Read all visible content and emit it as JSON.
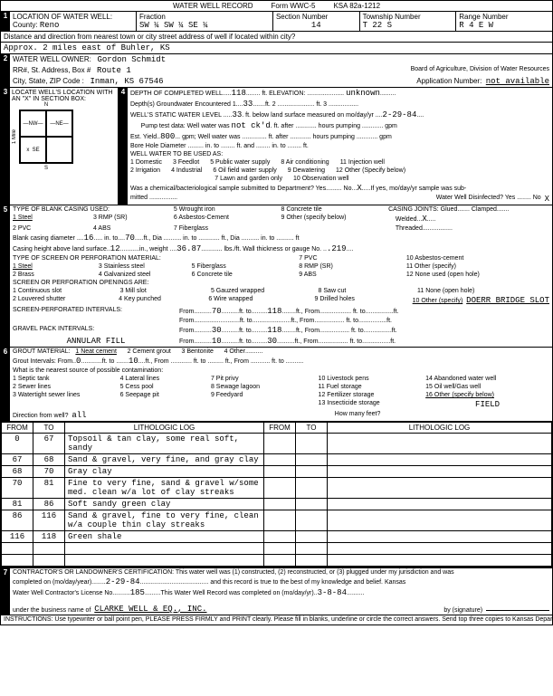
{
  "form": {
    "title_left": "WATER WELL RECORD",
    "title_mid": "Form WWC-5",
    "title_right": "KSA 82a-1212"
  },
  "sec1": {
    "label": "LOCATION OF WATER WELL:",
    "county_label": "County:",
    "county": "Reno",
    "fraction_label": "Fraction",
    "fraction": "SW  ¼  SW  ¼  SE  ¼",
    "section_label": "Section Number",
    "section": "14",
    "township_label": "Township Number",
    "township": "T    22    S",
    "range_label": "Range Number",
    "range": "R  4      E  W",
    "distance_label": "Distance and direction from nearest town or city street address of well if located within city?",
    "distance": "Approx. 2 miles east of Buhler, KS"
  },
  "sec2": {
    "owner_label": "WATER WELL OWNER:",
    "owner": "Gordon Schmidt",
    "rr_label": "RR#, St. Address, Box #",
    "rr": "Route 1",
    "board": "Board of Agriculture, Division of Water Resources",
    "city_label": "City, State, ZIP Code  :",
    "city": "Inman, KS   67546",
    "app_label": "Application Number:",
    "app": "not available"
  },
  "sec3": {
    "label": "LOCATE WELL'S LOCATION WITH AN \"X\" IN SECTION BOX:",
    "n": "N",
    "nw": "NW",
    "ne": "NE",
    "w": "W",
    "e": "E",
    "sw": "SW",
    "se": "SE",
    "s": "S",
    "mile": "1 Mile"
  },
  "sec4": {
    "depth_label": "DEPTH OF COMPLETED WELL",
    "depth": "118",
    "elev_label": "ft. ELEVATION:",
    "elev": "unknown",
    "gw_label": "Depth(s) Groundwater Encountered   1",
    "gw1": "33",
    "gw2": "ft. 2",
    "gw3": "ft. 3",
    "static_label": "WELL'S STATIC WATER LEVEL",
    "static": "33",
    "static_after": "ft. below land surface measured on mo/day/yr",
    "static_date": "2-29-84",
    "pump_label": "Pump test data:  Well water was",
    "pump_val": "not ck'd",
    "pump_after": "ft. after ............ hours pumping ............ gpm",
    "yield_label": "Est. Yield",
    "yield": "800",
    "yield_after": "gpm;  Well water was .............. ft. after ............ hours pumping ............ gpm",
    "bore_label": "Bore Hole Diameter",
    "bore_after": "in. to ........ ft. and ........ in. to ........ ft.",
    "use_label": "WELL WATER TO BE USED AS:",
    "use_opts": [
      "1 Domestic",
      "2 Irrigation",
      "3  Feedlot",
      "4  Industrial",
      "5 Public water supply",
      "6 Oil field water supply",
      "7 Lawn and garden only",
      "8 Air conditioning",
      "9 Dewatering",
      "10 Observation well",
      "11 Injection well",
      "12 Other (Specify below)"
    ],
    "chem_label": "Was a chemical/bacteriological sample submitted to Department? Yes......... No",
    "chem_val": "X",
    "chem_after": "If yes, mo/day/yr sample was sub-",
    "mitted": "mitted ................",
    "disinfect": "Water Well Disinfected?  Yes ........  No",
    "disinfect_val": "X"
  },
  "sec5": {
    "label": "TYPE OF BLANK CASING USED:",
    "casing_opts": [
      "1 Steel",
      "2 PVC",
      "3 RMP (SR)",
      "4 ABS",
      "5 Wrought iron",
      "6 Asbestos-Cement",
      "7 Fiberglass",
      "8 Concrete tile",
      "9 Other (specify below)"
    ],
    "joints_label": "CASING JOINTS: Glued....... Clamped.......",
    "welded_label": "Welded",
    "welded": "X",
    "threaded": "Threaded.................",
    "dia_label": "Blank casing diameter",
    "dia": "16",
    "dia_to_label": "in. to",
    "dia_to": "70",
    "dia_after": "ft., Dia .......... in. to ............ ft., Dia .......... in. to .......... ft",
    "height_label": "Casing height above land surface",
    "height": "12",
    "weight_label": "in., weight",
    "weight": "36.87",
    "weight_after": "lbs./ft. Wall thickness or gauge No.",
    "gauge": ".219",
    "screen_label": "TYPE OF SCREEN OR PERFORATION MATERIAL:",
    "screen_opts": [
      "1 Steel",
      "2 Brass",
      "3 Stainless steel",
      "4 Galvanized steel",
      "5 Fiberglass",
      "6 Concrete tile",
      "7 PVC",
      "8 RMP (SR)",
      "9 ABS",
      "10 Asbestos-cement",
      "11 Other (specify)",
      "12 None used (open hole)"
    ],
    "openings_label": "SCREEN OR PERFORATION OPENINGS ARE:",
    "openings_opts": [
      "1 Continuous slot",
      "2 Louvered shutter",
      "3 Mill slot",
      "4 Key punched",
      "5 Gauzed wrapped",
      "6 Wire wrapped",
      "7 Torch cut",
      "8 Saw cut",
      "9 Drilled holes",
      "10 Other (specify)",
      "11 None (open hole)"
    ],
    "other_specify": "DOERR BRIDGE SLOT",
    "perf_label": "SCREEN-PERFORATED INTERVALS:",
    "perf_from": "From",
    "perf1_f": "70",
    "perf1_t": "118",
    "gravel_label": "GRAVEL PACK INTERVALS:",
    "gravel_f": "30",
    "gravel_t": "118",
    "annular_label": "ANNULAR FILL",
    "annular_f": "10",
    "annular_t": "30"
  },
  "sec6": {
    "label": "GROUT MATERIAL:",
    "grout_opts": [
      "1 Neat cement",
      "2 Cement grout",
      "3 Bentonite",
      "4 Other"
    ],
    "grout_int_label": "Grout Intervals:    From",
    "grout_f": "0",
    "grout_t": "10",
    "grout_after": "ft., From ............ ft. to ......... ft., From ........... ft. to ..........",
    "contam_label": "What is the nearest source of possible contamination:",
    "contam_opts": [
      "1 Septic tank",
      "2 Sewer lines",
      "3 Watertight sewer lines",
      "4 Lateral lines",
      "5 Cess pool",
      "6 Seepage pit",
      "7 Pit privy",
      "8 Sewage lagoon",
      "9 Feedyard",
      "10 Livestock pens",
      "11 Fuel storage",
      "12 Fertilizer storage",
      "13 Insecticide storage",
      "14 Abandoned water well",
      "15 Oil well/Gas well",
      "16 Other (specify below)"
    ],
    "contam_other": "FIELD",
    "dir_label": "Direction from well?",
    "dir": "all",
    "dir_after": "How many feet?"
  },
  "log": {
    "headers": [
      "FROM",
      "TO",
      "LITHOLOGIC LOG",
      "FROM",
      "TO",
      "LITHOLOGIC LOG"
    ],
    "rows": [
      [
        "0",
        "67",
        "Topsoil & tan clay, some real soft, sandy",
        "",
        "",
        ""
      ],
      [
        "67",
        "68",
        "Sand & gravel, very fine, and gray clay",
        "",
        "",
        ""
      ],
      [
        "68",
        "70",
        "Gray clay",
        "",
        "",
        ""
      ],
      [
        "70",
        "81",
        "Fine to very fine, sand & gravel w/some med. clean w/a lot of clay streaks",
        "",
        "",
        ""
      ],
      [
        "81",
        "86",
        "Soft sandy green clay",
        "",
        "",
        ""
      ],
      [
        "86",
        "116",
        "Sand & gravel, fine to very fine, clean w/a couple thin clay streaks",
        "",
        "",
        ""
      ],
      [
        "116",
        "118",
        "Green shale",
        "",
        "",
        ""
      ],
      [
        "",
        "",
        "",
        "",
        "",
        ""
      ],
      [
        "",
        "",
        "",
        "",
        "",
        ""
      ]
    ]
  },
  "sec7": {
    "cert_label": "CONTRACTOR'S OR LANDOWNER'S CERTIFICATION: This water well was (1) constructed, (2) reconstructed, or (3) plugged under my jurisdiction and was",
    "completed_label": "completed on (mo/day/year)",
    "completed": "2-29-84",
    "cert_after": "and this record is true to the best of my knowledge and belief. Kansas",
    "lic_label": "Water Well Contractor's License No.",
    "lic": "185",
    "lic_after": "This Water Well Record was completed on (mo/day/yr)",
    "rec_date": "3-8-84",
    "bus_label": "under the business name of",
    "bus": "CLARKE WELL & EQ., INC.",
    "sig_label": "by (signature)",
    "instructions": "INSTRUCTIONS: Use typewriter or ball point pen, PLEASE PRESS  FIRMLY and PRINT clearly. Please fill in blanks, underline or circle the correct answers. Send top three copies to Kansas Department of Health and Environment, Division of Environment, Environmental Geology Section, Topeka, KS 66620. Send one to WATER WELL OWNER and retain one for your records."
  }
}
